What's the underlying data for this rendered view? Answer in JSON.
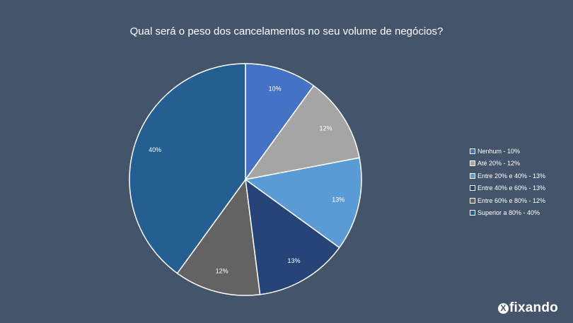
{
  "chart_data": {
    "type": "pie",
    "title": "Qual será o peso dos cancelamentos no seu volume de negócios?",
    "slices": [
      {
        "label": "Nenhum",
        "value": 10,
        "data_label": "10%",
        "legend": "Nenhum - 10%",
        "color": "#4472c4"
      },
      {
        "label": "Até 20%",
        "value": 12,
        "data_label": "12%",
        "legend": "Até 20% - 12%",
        "color": "#a5a5a5"
      },
      {
        "label": "Entre 20% e 40%",
        "value": 13,
        "data_label": "13%",
        "legend": "Entre 20% e 40% - 13%",
        "color": "#5b9bd5"
      },
      {
        "label": "Entre 40% e 60%",
        "value": 13,
        "data_label": "13%",
        "legend": "Entre 40% e 60% - 13%",
        "color": "#264478"
      },
      {
        "label": "Entre 60% e 80%",
        "value": 12,
        "data_label": "12%",
        "legend": "Entre 60% e 80% - 12%",
        "color": "#636363"
      },
      {
        "label": "Superior a 80%",
        "value": 40,
        "data_label": "40%",
        "legend": "Superior a 80% - 40%",
        "color": "#255e91"
      }
    ],
    "legend_position": "right"
  },
  "branding": {
    "logo_mark": "X",
    "logo_text": "fixando"
  }
}
